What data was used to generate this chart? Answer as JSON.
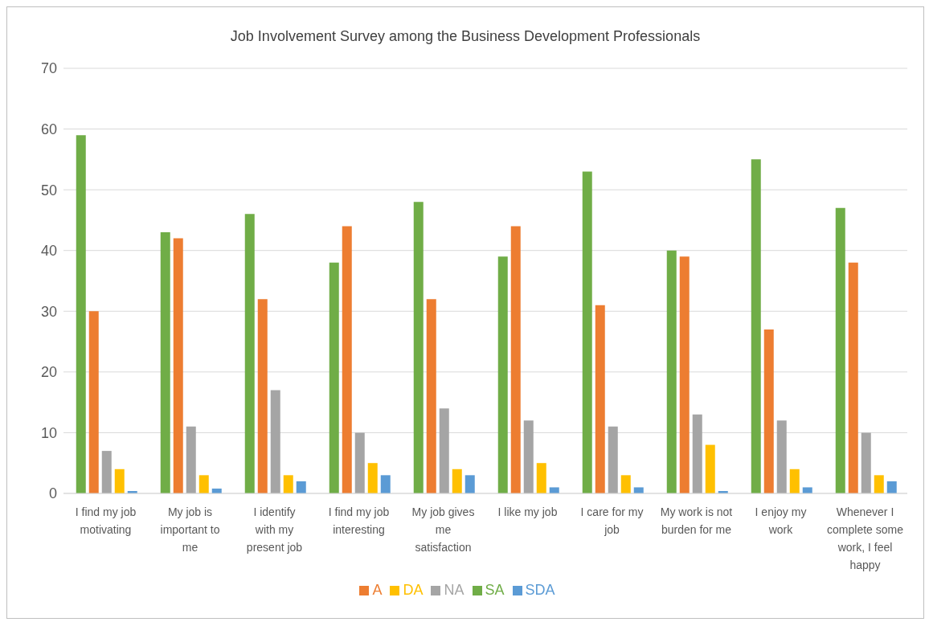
{
  "chart_data": {
    "type": "bar",
    "title": "Job Involvement Survey among the Business Development Professionals",
    "categories": [
      "I find my job motivating",
      "My job is important to me",
      "I identify with my present job",
      "I find my job interesting",
      "My job gives me satisfaction",
      "I like my job",
      "I care for my job",
      "My work is not burden for me",
      "I enjoy my work",
      "Whenever I complete some work, I feel happy"
    ],
    "series": [
      {
        "name": "SA",
        "color": "#70ad47",
        "values": [
          59,
          43,
          46,
          38,
          48,
          39,
          53,
          40,
          55,
          47
        ]
      },
      {
        "name": "A",
        "color": "#ed7d31",
        "values": [
          30,
          42,
          32,
          44,
          32,
          44,
          31,
          39,
          27,
          38
        ]
      },
      {
        "name": "NA",
        "color": "#a5a5a5",
        "values": [
          7,
          11,
          17,
          10,
          14,
          12,
          11,
          13,
          12,
          10
        ]
      },
      {
        "name": "DA",
        "color": "#ffc000",
        "values": [
          4,
          3,
          3,
          5,
          4,
          5,
          3,
          8,
          4,
          3
        ]
      },
      {
        "name": "SDA",
        "color": "#5b9bd5",
        "values": [
          0.4,
          0.8,
          2,
          3,
          3,
          1,
          1,
          0.4,
          1,
          2
        ]
      }
    ],
    "ylim": [
      0,
      70
    ],
    "yticks": [
      0,
      10,
      20,
      30,
      40,
      50,
      60,
      70
    ],
    "grid": "y",
    "legend": "bottom"
  }
}
